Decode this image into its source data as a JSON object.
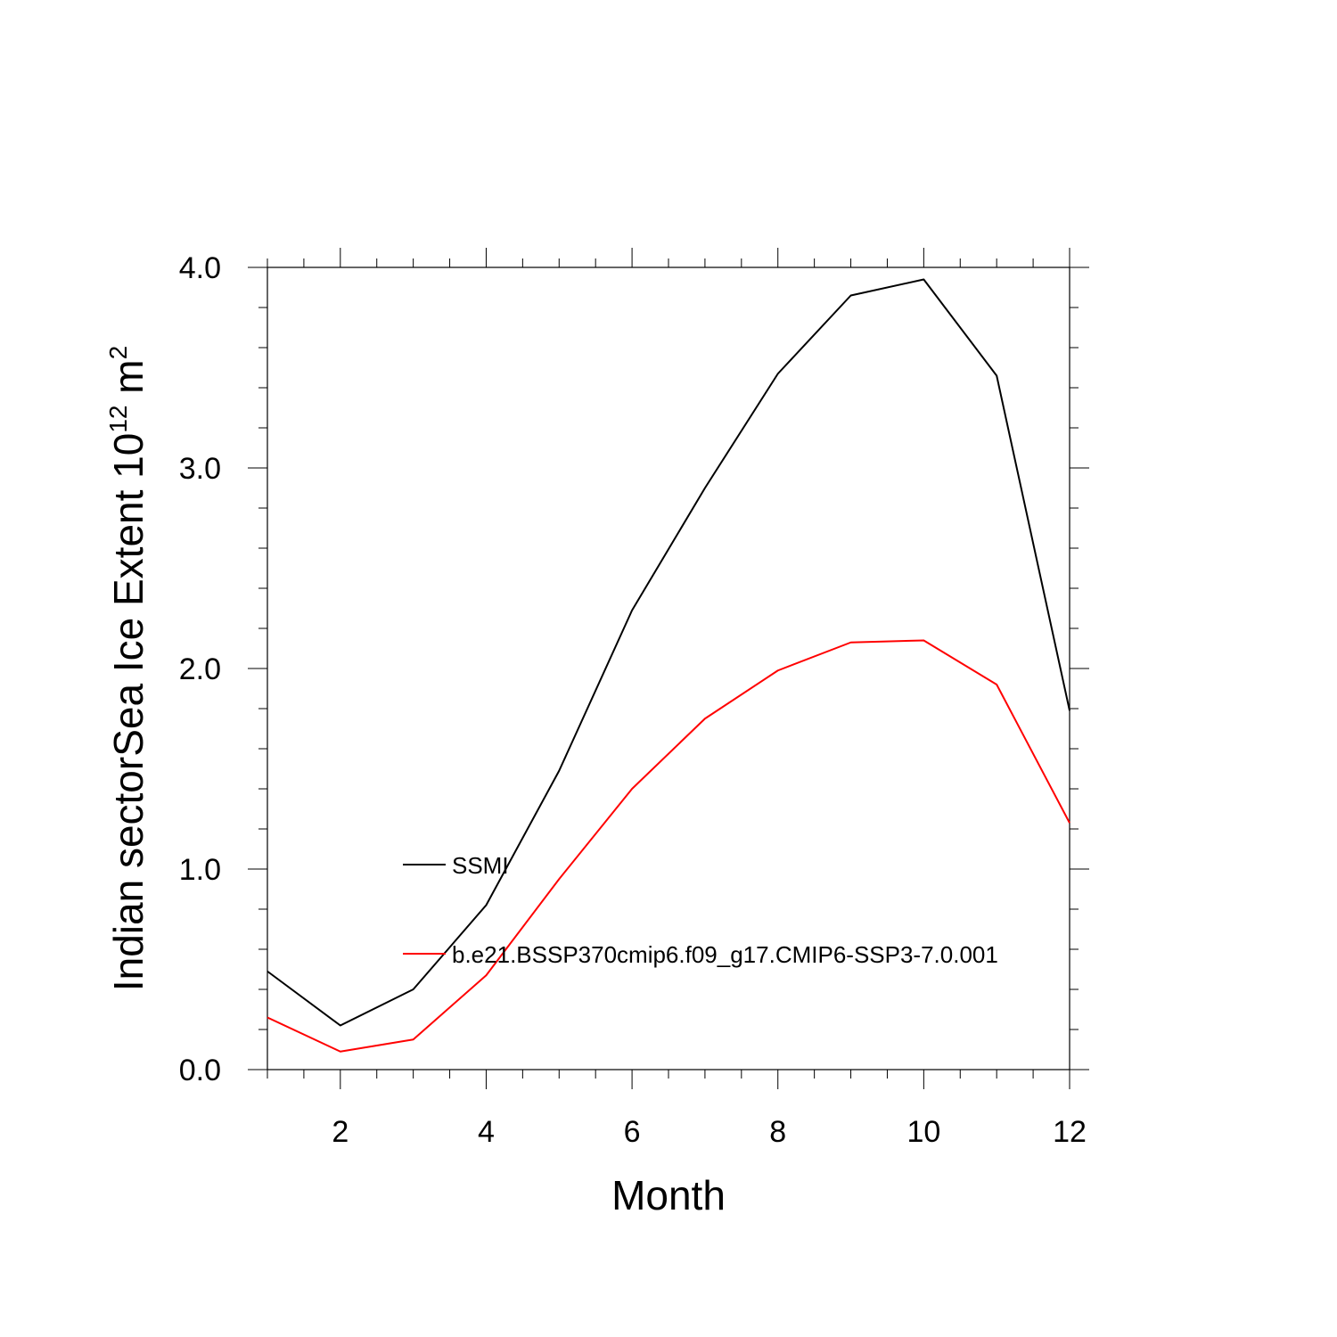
{
  "chart_data": {
    "type": "line",
    "xlabel": "Month",
    "ylabel": {
      "main": "Indian sectorSea Ice Extent 10",
      "exponent": "12",
      "unit": " m",
      "unit_exponent": "2"
    },
    "xlim": [
      1,
      12
    ],
    "ylim": [
      0,
      4
    ],
    "x_ticks": [
      2,
      4,
      6,
      8,
      10,
      12
    ],
    "y_ticks": [
      "0.0",
      "1.0",
      "2.0",
      "3.0",
      "4.0"
    ],
    "grid": false,
    "x": [
      1,
      2,
      3,
      4,
      5,
      6,
      7,
      8,
      9,
      10,
      11,
      12
    ],
    "series": [
      {
        "name": "SSMI",
        "color": "#000000",
        "values": [
          0.49,
          0.22,
          0.4,
          0.82,
          1.49,
          2.29,
          2.9,
          3.47,
          3.86,
          3.94,
          3.46,
          1.79
        ]
      },
      {
        "name": "b.e21.BSSP370cmip6.f09_g17.CMIP6-SSP3-7.0.001",
        "color": "#ff0000",
        "values": [
          0.26,
          0.09,
          0.15,
          0.47,
          0.95,
          1.4,
          1.75,
          1.99,
          2.13,
          2.14,
          1.92,
          1.23
        ]
      }
    ]
  }
}
